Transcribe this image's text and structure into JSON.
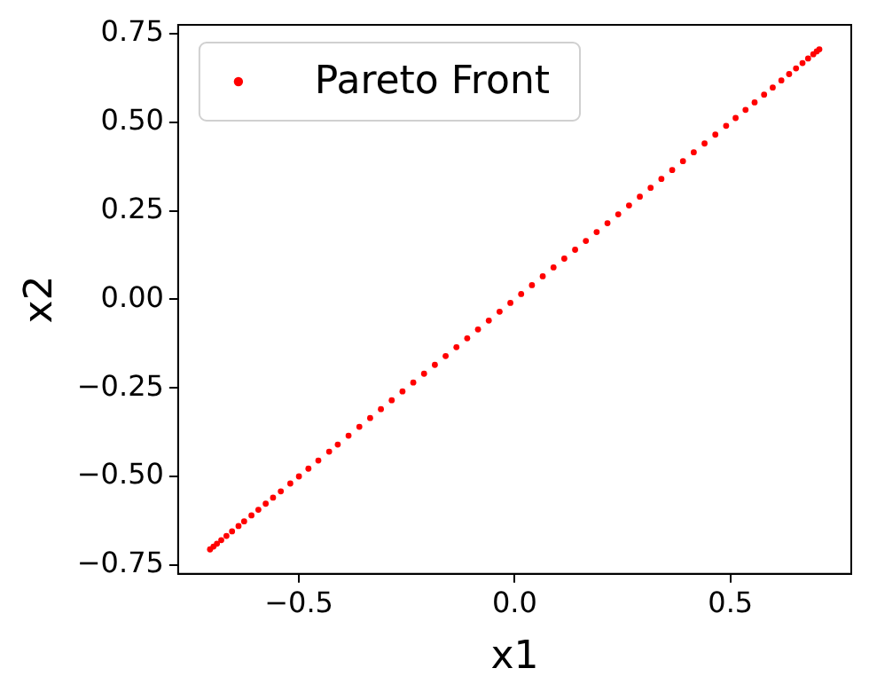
{
  "chart_data": {
    "type": "scatter",
    "xlabel": "x1",
    "ylabel": "x2",
    "xlim": [
      -0.78,
      0.78
    ],
    "ylim": [
      -0.775,
      0.775
    ],
    "xticks": [
      {
        "value": -0.5,
        "label": "−0.5"
      },
      {
        "value": 0,
        "label": "0.0"
      },
      {
        "value": 0.5,
        "label": "0.5"
      }
    ],
    "yticks": [
      {
        "value": -0.75,
        "label": "−0.75"
      },
      {
        "value": -0.5,
        "label": "−0.50"
      },
      {
        "value": -0.25,
        "label": "−0.25"
      },
      {
        "value": 0,
        "label": "0.00"
      },
      {
        "value": 0.25,
        "label": "0.25"
      },
      {
        "value": 0.5,
        "label": "0.50"
      },
      {
        "value": 0.75,
        "label": "0.75"
      }
    ],
    "grid": false,
    "legend": "top left",
    "marker": "circle",
    "series": [
      {
        "name": "Pareto Front",
        "color": "#ff0000",
        "x": [
          -0.706,
          -0.698,
          -0.69,
          -0.68,
          -0.668,
          -0.655,
          -0.64,
          -0.627,
          -0.61,
          -0.594,
          -0.577,
          -0.56,
          -0.542,
          -0.52,
          -0.5,
          -0.478,
          -0.455,
          -0.43,
          -0.41,
          -0.385,
          -0.36,
          -0.335,
          -0.31,
          -0.285,
          -0.26,
          -0.235,
          -0.21,
          -0.185,
          -0.16,
          -0.135,
          -0.11,
          -0.085,
          -0.06,
          -0.035,
          -0.01,
          0.015,
          0.04,
          0.065,
          0.09,
          0.115,
          0.14,
          0.165,
          0.19,
          0.215,
          0.24,
          0.265,
          0.29,
          0.315,
          0.34,
          0.365,
          0.39,
          0.415,
          0.44,
          0.465,
          0.49,
          0.512,
          0.535,
          0.556,
          0.578,
          0.598,
          0.618,
          0.636,
          0.652,
          0.667,
          0.68,
          0.692,
          0.7,
          0.706
        ],
        "values": [
          -0.706,
          -0.698,
          -0.69,
          -0.68,
          -0.668,
          -0.655,
          -0.64,
          -0.627,
          -0.61,
          -0.594,
          -0.577,
          -0.56,
          -0.542,
          -0.52,
          -0.5,
          -0.478,
          -0.455,
          -0.43,
          -0.41,
          -0.385,
          -0.36,
          -0.335,
          -0.31,
          -0.285,
          -0.26,
          -0.235,
          -0.21,
          -0.185,
          -0.16,
          -0.135,
          -0.11,
          -0.085,
          -0.06,
          -0.035,
          -0.01,
          0.015,
          0.04,
          0.065,
          0.09,
          0.115,
          0.14,
          0.165,
          0.19,
          0.215,
          0.24,
          0.265,
          0.29,
          0.315,
          0.34,
          0.365,
          0.39,
          0.415,
          0.44,
          0.465,
          0.49,
          0.512,
          0.535,
          0.556,
          0.578,
          0.598,
          0.618,
          0.636,
          0.652,
          0.667,
          0.68,
          0.692,
          0.7,
          0.706
        ]
      }
    ]
  }
}
